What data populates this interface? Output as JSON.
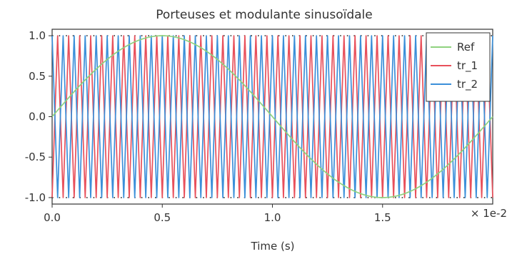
{
  "chart_data": {
    "type": "line",
    "title": "Porteuses et modulante sinusoïdale",
    "xlabel": "Time (s)",
    "ylabel": "",
    "x_scale_label": "× 1e-2",
    "xlim": [
      0,
      0.02
    ],
    "ylim": [
      -1.08,
      1.08
    ],
    "x_ticks": [
      0,
      0.005,
      0.01,
      0.015
    ],
    "x_tick_labels": [
      "0.0",
      "0.5",
      "1.0",
      "1.5"
    ],
    "y_ticks": [
      1.0,
      0.5,
      0.0,
      -0.5,
      -1.0
    ],
    "y_tick_labels": [
      "1.0",
      "0.5",
      "0.0",
      "-0.5",
      "-1.0"
    ],
    "grid": false,
    "reference_lines": [
      1.0,
      -1.0
    ],
    "legend_position": "top-right",
    "series": [
      {
        "name": "Ref",
        "color": "#8fd27f",
        "kind": "sine",
        "amplitude": 1.0,
        "frequency_hz": 50,
        "x": [
          0,
          0.0025,
          0.005,
          0.0075,
          0.01,
          0.0125,
          0.015,
          0.0175,
          0.02
        ],
        "values": [
          0.0,
          0.707,
          1.0,
          0.707,
          0.0,
          -0.707,
          -1.0,
          -0.707,
          0.0
        ]
      },
      {
        "name": "tr_1",
        "color": "#e8505b",
        "kind": "triangle",
        "period_s": 0.0005,
        "x": [
          0,
          0.00025,
          0.0005,
          0.00075,
          0.001
        ],
        "values": [
          -1.0,
          1.0,
          -1.0,
          1.0,
          -1.0
        ]
      },
      {
        "name": "tr_2",
        "color": "#3b8fd9",
        "kind": "triangle",
        "period_s": 0.0005,
        "x": [
          0,
          0.00025,
          0.0005,
          0.00075,
          0.001
        ],
        "values": [
          1.0,
          -1.0,
          1.0,
          -1.0,
          1.0
        ]
      }
    ]
  }
}
